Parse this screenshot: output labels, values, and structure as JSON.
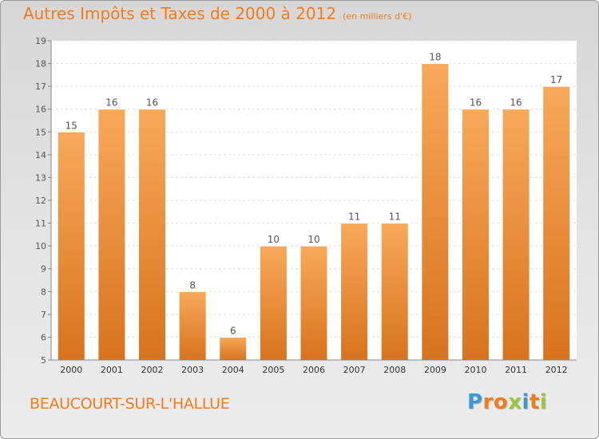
{
  "chart_title": "Autres Impôts et Taxes de 2000 à 2012",
  "chart_unit": "(en milliers d'€)",
  "commune": "BEAUCOURT-SUR-L'HALLUE",
  "brand": {
    "text": "Proxiti",
    "letters": [
      {
        "ch": "P",
        "color": "#3a9ad9"
      },
      {
        "ch": "r",
        "color": "#f07c1e"
      },
      {
        "ch": "o",
        "color": "#f07c1e"
      },
      {
        "ch": "x",
        "color": "#9bc53d"
      },
      {
        "ch": "i",
        "color": "#3a9ad9"
      },
      {
        "ch": "t",
        "color": "#f07c1e"
      },
      {
        "ch": "i",
        "color": "#9bc53d"
      }
    ]
  },
  "colors": {
    "bar_light": "#f8a95a",
    "bar_dark": "#d8731e",
    "text": "#555555",
    "accent": "#f07c1e"
  },
  "chart_data": {
    "type": "bar",
    "categories": [
      "2000",
      "2001",
      "2002",
      "2003",
      "2004",
      "2005",
      "2006",
      "2007",
      "2008",
      "2009",
      "2010",
      "2011",
      "2012"
    ],
    "values": [
      15,
      16,
      16,
      8,
      6,
      10,
      10,
      11,
      11,
      18,
      16,
      16,
      17
    ],
    "ylim": [
      5,
      19
    ],
    "yticks": [
      5,
      6,
      7,
      8,
      9,
      10,
      11,
      12,
      13,
      14,
      15,
      16,
      17,
      18,
      19
    ],
    "grid": true,
    "data_labels": true
  }
}
